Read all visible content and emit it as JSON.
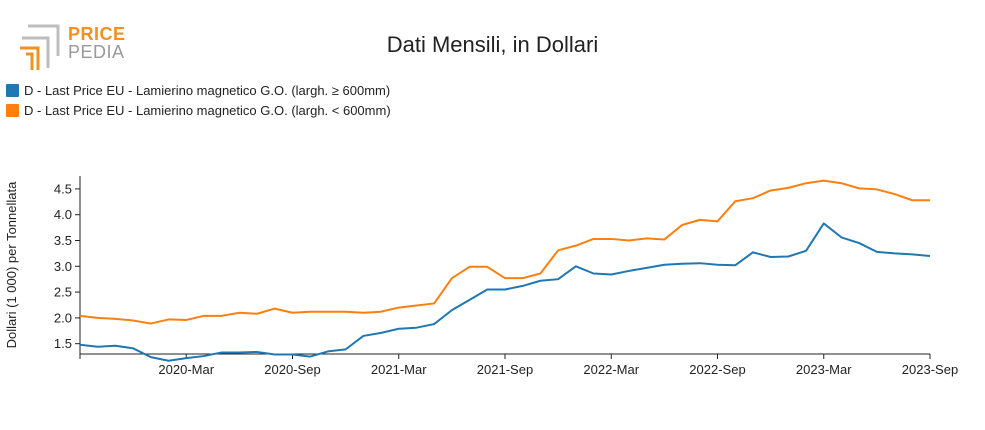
{
  "logo": {
    "line1": "PRICE",
    "line2": "PEDIA",
    "icon": "pricepedia-logo-icon",
    "colors": {
      "orange": "#f0921f",
      "gray": "#9a9a9a"
    }
  },
  "chart_data": {
    "type": "line",
    "title": "Dati Mensili, in Dollari",
    "xlabel": "",
    "ylabel": "Dollari (1 000) per Tonnellata",
    "ylim": [
      1.3,
      4.75
    ],
    "yticks": [
      1.5,
      2.0,
      2.5,
      3.0,
      3.5,
      4.0,
      4.5
    ],
    "ytick_labels": [
      "1.5",
      "2.0",
      "2.5",
      "3.0",
      "3.5",
      "4.0",
      "4.5"
    ],
    "xticks": [
      "2020-Mar",
      "2020-Sep",
      "2021-Mar",
      "2021-Sep",
      "2022-Mar",
      "2022-Sep",
      "2023-Mar",
      "2023-Sep"
    ],
    "xlim": [
      "2019-Sep",
      "2023-Sep"
    ],
    "grid": false,
    "legend_position": "top-left",
    "x": [
      "2019-Sep",
      "2019-Oct",
      "2019-Nov",
      "2019-Dec",
      "2020-Jan",
      "2020-Feb",
      "2020-Mar",
      "2020-Apr",
      "2020-May",
      "2020-Jun",
      "2020-Jul",
      "2020-Aug",
      "2020-Sep",
      "2020-Oct",
      "2020-Nov",
      "2020-Dec",
      "2021-Jan",
      "2021-Feb",
      "2021-Mar",
      "2021-Apr",
      "2021-May",
      "2021-Jun",
      "2021-Jul",
      "2021-Aug",
      "2021-Sep",
      "2021-Oct",
      "2021-Nov",
      "2021-Dec",
      "2022-Jan",
      "2022-Feb",
      "2022-Mar",
      "2022-Apr",
      "2022-May",
      "2022-Jun",
      "2022-Jul",
      "2022-Aug",
      "2022-Sep",
      "2022-Oct",
      "2022-Nov",
      "2022-Dec",
      "2023-Jan",
      "2023-Feb",
      "2023-Mar",
      "2023-Apr",
      "2023-May",
      "2023-Jun",
      "2023-Jul",
      "2023-Aug",
      "2023-Sep"
    ],
    "series": [
      {
        "name": "D - Last Price EU - Lamierino magnetico G.O. (largh. ≥ 600mm)",
        "color": "#1f77b4",
        "values": [
          1.48,
          1.44,
          1.46,
          1.41,
          1.24,
          1.17,
          1.22,
          1.26,
          1.33,
          1.33,
          1.34,
          1.29,
          1.29,
          1.25,
          1.35,
          1.39,
          1.65,
          1.71,
          1.79,
          1.81,
          1.88,
          2.15,
          2.35,
          2.55,
          2.55,
          2.62,
          2.72,
          2.75,
          3.0,
          2.86,
          2.84,
          2.91,
          2.97,
          3.03,
          3.05,
          3.06,
          3.03,
          3.02,
          3.27,
          3.18,
          3.19,
          3.3,
          3.83,
          3.56,
          3.45,
          3.28,
          3.25,
          3.23,
          3.2
        ]
      },
      {
        "name": "D - Last Price EU - Lamierino magnetico G.O. (largh. < 600mm)",
        "color": "#ff7f0e",
        "values": [
          2.04,
          2.0,
          1.98,
          1.95,
          1.89,
          1.97,
          1.96,
          2.04,
          2.04,
          2.1,
          2.08,
          2.18,
          2.1,
          2.12,
          2.12,
          2.12,
          2.1,
          2.12,
          2.2,
          2.24,
          2.28,
          2.77,
          2.99,
          2.99,
          2.77,
          2.77,
          2.86,
          3.31,
          3.4,
          3.53,
          3.53,
          3.5,
          3.54,
          3.52,
          3.8,
          3.9,
          3.87,
          4.26,
          4.32,
          4.47,
          4.52,
          4.61,
          4.66,
          4.61,
          4.51,
          4.49,
          4.4,
          4.28,
          4.28
        ]
      }
    ]
  }
}
